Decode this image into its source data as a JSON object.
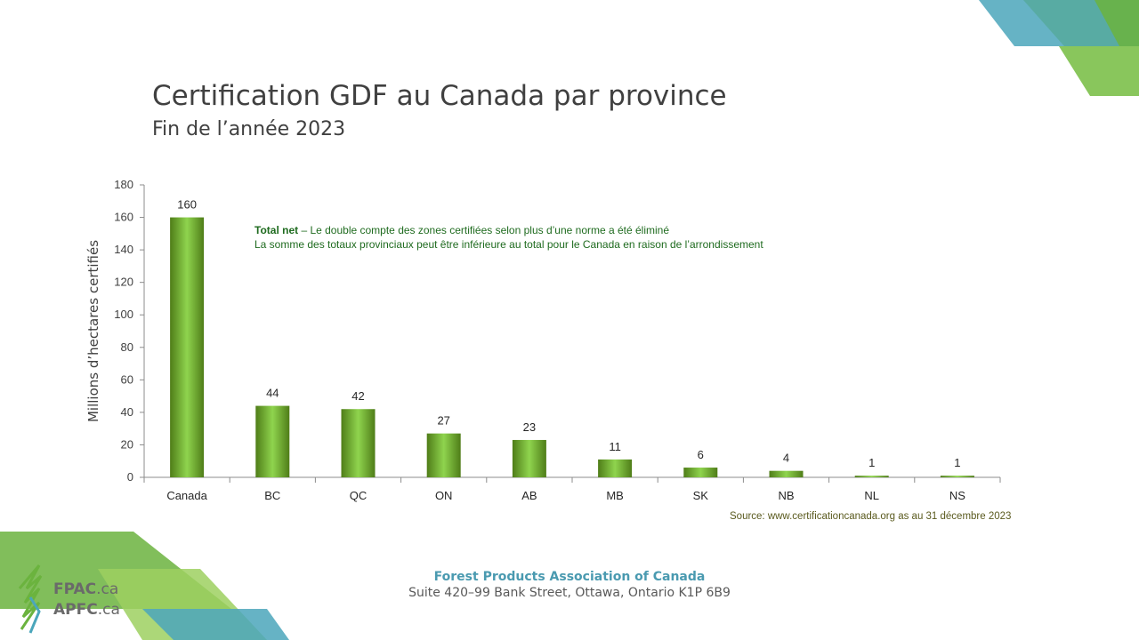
{
  "slide": {
    "title": "Certification GDF au Canada par province",
    "subtitle": "Fin de l’année 2023"
  },
  "note": {
    "bold": "Total net",
    "line1_rest": " – Le double compte des zones certifiées selon plus d’une norme a été éliminé",
    "line2": "La somme des totaux provinciaux peut être inférieure au total pour le Canada en raison de l’arrondissement"
  },
  "source": "Source: www.certificationcanada.org as au 31 décembre 2023",
  "footer": {
    "org_name": "Forest Products Association of Canada",
    "address": "Suite 420–99 Bank Street, Ottawa, Ontario K1P 6B9"
  },
  "logo": {
    "line1_bold": "FPAC",
    "line1_rest": ".ca",
    "line2_bold": "APFC",
    "line2_rest": ".ca"
  },
  "colors": {
    "bar_dark": "#4f7d18",
    "bar_light": "#8fd44e",
    "teal": "#4ba6bb",
    "green": "#6bb33e"
  },
  "chart_data": {
    "type": "bar",
    "categories": [
      "Canada",
      "BC",
      "QC",
      "ON",
      "AB",
      "MB",
      "SK",
      "NB",
      "NL",
      "NS"
    ],
    "values": [
      160,
      44,
      42,
      27,
      23,
      11,
      6,
      4,
      1,
      1
    ],
    "ylabel": "Millions d’hectares certifiés",
    "xlabel": "",
    "ylim": [
      0,
      180
    ],
    "yticks": [
      0,
      20,
      40,
      60,
      80,
      100,
      120,
      140,
      160,
      180
    ],
    "grid": false
  }
}
